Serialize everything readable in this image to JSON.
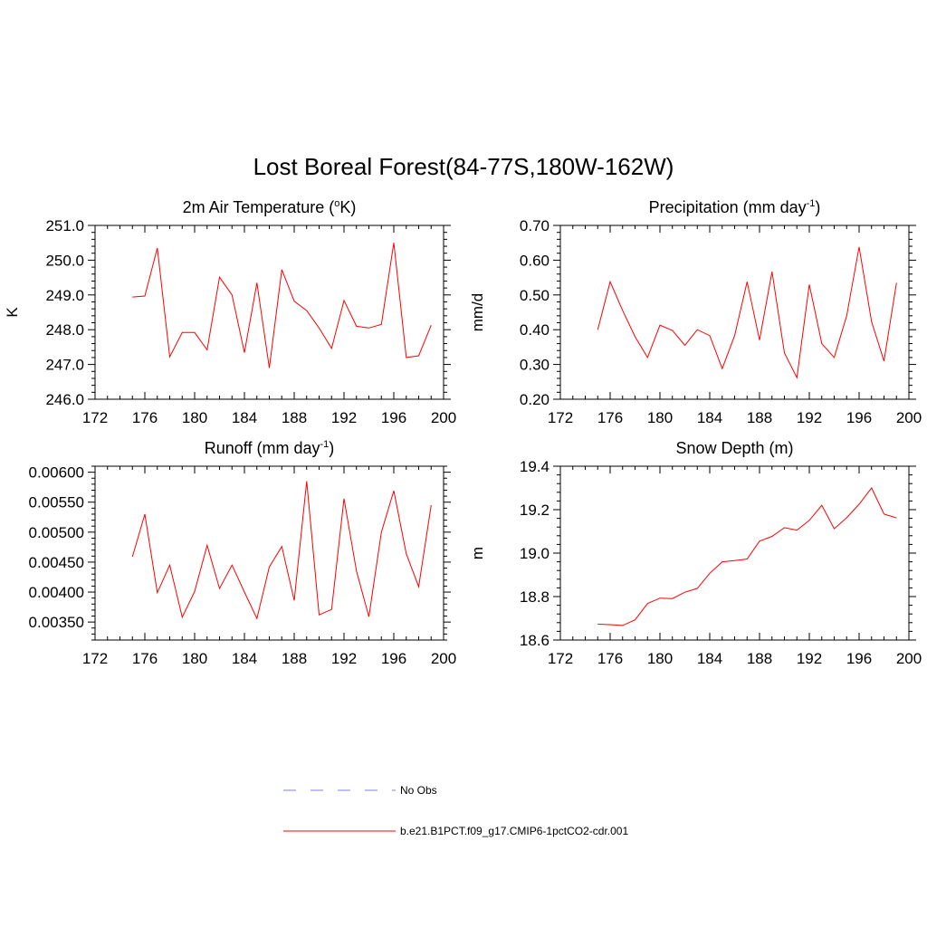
{
  "page_title": "Lost Boreal Forest(84-77S,180W-162W)",
  "colors": {
    "model": "#ff0000",
    "obs": "#9999ee"
  },
  "legend": {
    "obs_label": "No Obs",
    "model_label": "b.e21.B1PCT.f09_g17.CMIP6-1pctCO2-cdr.001"
  },
  "chart_data": [
    {
      "type": "line",
      "title": "2m Air Temperature (",
      "title_sup": "o",
      "title_end": "K)",
      "xlabel": "",
      "ylabel": "K",
      "xlim": [
        172,
        200
      ],
      "ylim": [
        246.0,
        251.0
      ],
      "xticks": [
        172,
        176,
        180,
        184,
        188,
        192,
        196,
        200
      ],
      "yticks": [
        "246.0",
        "247.0",
        "248.0",
        "249.0",
        "250.0",
        "251.0"
      ],
      "grid": false,
      "x": [
        175,
        176,
        177,
        178,
        179,
        180,
        181,
        182,
        183,
        184,
        185,
        186,
        187,
        188,
        189,
        190,
        191,
        192,
        193,
        194,
        195,
        196,
        197,
        198,
        199
      ],
      "series": [
        {
          "name": "b.e21.B1PCT.f09_g17.CMIP6-1pctCO2-cdr.001",
          "values": [
            248.94,
            248.97,
            250.35,
            247.22,
            247.92,
            247.92,
            247.42,
            249.51,
            249.0,
            247.34,
            249.35,
            246.9,
            249.73,
            248.82,
            248.55,
            248.05,
            247.46,
            248.84,
            248.1,
            248.05,
            248.15,
            250.5,
            247.2,
            247.25,
            248.13
          ]
        }
      ]
    },
    {
      "type": "line",
      "title": "Precipitation (mm day",
      "title_sup": "-1",
      "title_end": ")",
      "xlabel": "",
      "ylabel": "mm/d",
      "xlim": [
        172,
        200
      ],
      "ylim": [
        0.2,
        0.7
      ],
      "xticks": [
        172,
        176,
        180,
        184,
        188,
        192,
        196,
        200
      ],
      "yticks": [
        "0.20",
        "0.30",
        "0.40",
        "0.50",
        "0.60",
        "0.70"
      ],
      "grid": false,
      "x": [
        175,
        176,
        177,
        178,
        179,
        180,
        181,
        182,
        183,
        184,
        185,
        186,
        187,
        188,
        189,
        190,
        191,
        192,
        193,
        194,
        195,
        196,
        197,
        198,
        199
      ],
      "series": [
        {
          "name": "b.e21.B1PCT.f09_g17.CMIP6-1pctCO2-cdr.001",
          "values": [
            0.4,
            0.538,
            0.455,
            0.38,
            0.32,
            0.413,
            0.398,
            0.355,
            0.4,
            0.383,
            0.288,
            0.383,
            0.538,
            0.37,
            0.567,
            0.333,
            0.262,
            0.53,
            0.36,
            0.32,
            0.44,
            0.638,
            0.423,
            0.31,
            0.535
          ]
        }
      ]
    },
    {
      "type": "line",
      "title": "Runoff (mm day",
      "title_sup": "-1",
      "title_end": ")",
      "xlabel": "",
      "ylabel": "",
      "xlim": [
        172,
        200
      ],
      "ylim": [
        0.0032,
        0.0061
      ],
      "xticks": [
        172,
        176,
        180,
        184,
        188,
        192,
        196,
        200
      ],
      "yticks": [
        "0.00350",
        "0.00400",
        "0.00450",
        "0.00500",
        "0.00550",
        "0.00600"
      ],
      "grid": false,
      "x": [
        175,
        176,
        177,
        178,
        179,
        180,
        181,
        182,
        183,
        184,
        185,
        186,
        187,
        188,
        189,
        190,
        191,
        192,
        193,
        194,
        195,
        196,
        197,
        198,
        199
      ],
      "series": [
        {
          "name": "b.e21.B1PCT.f09_g17.CMIP6-1pctCO2-cdr.001",
          "values": [
            0.00459,
            0.0053,
            0.00399,
            0.00445,
            0.00358,
            0.00401,
            0.00478,
            0.00406,
            0.00445,
            0.004,
            0.00356,
            0.00442,
            0.00476,
            0.00386,
            0.00585,
            0.00362,
            0.00371,
            0.00556,
            0.00435,
            0.00359,
            0.005,
            0.00569,
            0.00464,
            0.00409,
            0.00545
          ]
        }
      ]
    },
    {
      "type": "line",
      "title": "Snow Depth (m)",
      "title_sup": "",
      "title_end": "",
      "xlabel": "",
      "ylabel": "m",
      "xlim": [
        172,
        200
      ],
      "ylim": [
        18.6,
        19.4
      ],
      "xticks": [
        172,
        176,
        180,
        184,
        188,
        192,
        196,
        200
      ],
      "yticks": [
        "18.6",
        "18.8",
        "19.0",
        "19.2",
        "19.4"
      ],
      "grid": false,
      "x": [
        175,
        176,
        177,
        178,
        179,
        180,
        181,
        182,
        183,
        184,
        185,
        186,
        187,
        188,
        189,
        190,
        191,
        192,
        193,
        194,
        195,
        196,
        197,
        198,
        199
      ],
      "series": [
        {
          "name": "b.e21.B1PCT.f09_g17.CMIP6-1pctCO2-cdr.001",
          "values": [
            18.673,
            18.671,
            18.667,
            18.693,
            18.768,
            18.793,
            18.791,
            18.82,
            18.838,
            18.907,
            18.96,
            18.966,
            18.973,
            19.055,
            19.077,
            19.117,
            19.106,
            19.151,
            19.22,
            19.112,
            19.163,
            19.225,
            19.3,
            19.18,
            19.162
          ]
        }
      ]
    }
  ]
}
